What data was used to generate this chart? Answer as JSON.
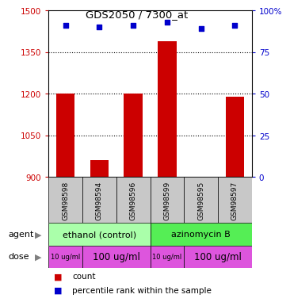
{
  "title": "GDS2050 / 7300_at",
  "samples": [
    "GSM98598",
    "GSM98594",
    "GSM98596",
    "GSM98599",
    "GSM98595",
    "GSM98597"
  ],
  "counts": [
    1200,
    960,
    1200,
    1390,
    900,
    1190
  ],
  "percentiles": [
    91,
    90,
    91,
    93,
    89,
    91
  ],
  "ylim_left": [
    900,
    1500
  ],
  "ylim_right": [
    0,
    100
  ],
  "yticks_left": [
    900,
    1050,
    1200,
    1350,
    1500
  ],
  "yticks_right": [
    0,
    25,
    50,
    75,
    100
  ],
  "ytick_labels_right": [
    "0",
    "25",
    "50",
    "75",
    "100%"
  ],
  "bar_color": "#cc0000",
  "dot_color": "#0000cc",
  "bar_bottom": 900,
  "agents": [
    {
      "label": "ethanol (control)",
      "start": 0,
      "end": 3,
      "color": "#aaffaa"
    },
    {
      "label": "azinomycin B",
      "start": 3,
      "end": 6,
      "color": "#55ee55"
    }
  ],
  "doses": [
    {
      "label": "10 ug/ml",
      "start": 0,
      "end": 1,
      "small": true
    },
    {
      "label": "100 ug/ml",
      "start": 1,
      "end": 3,
      "small": false
    },
    {
      "label": "10 ug/ml",
      "start": 3,
      "end": 4,
      "small": true
    },
    {
      "label": "100 ug/ml",
      "start": 4,
      "end": 6,
      "small": false
    }
  ],
  "dose_color": "#dd55dd",
  "sample_bg_color": "#c8c8c8",
  "legend_count_color": "#cc0000",
  "legend_percentile_color": "#0000cc",
  "left_tick_color": "#cc0000",
  "right_tick_color": "#0000cc"
}
